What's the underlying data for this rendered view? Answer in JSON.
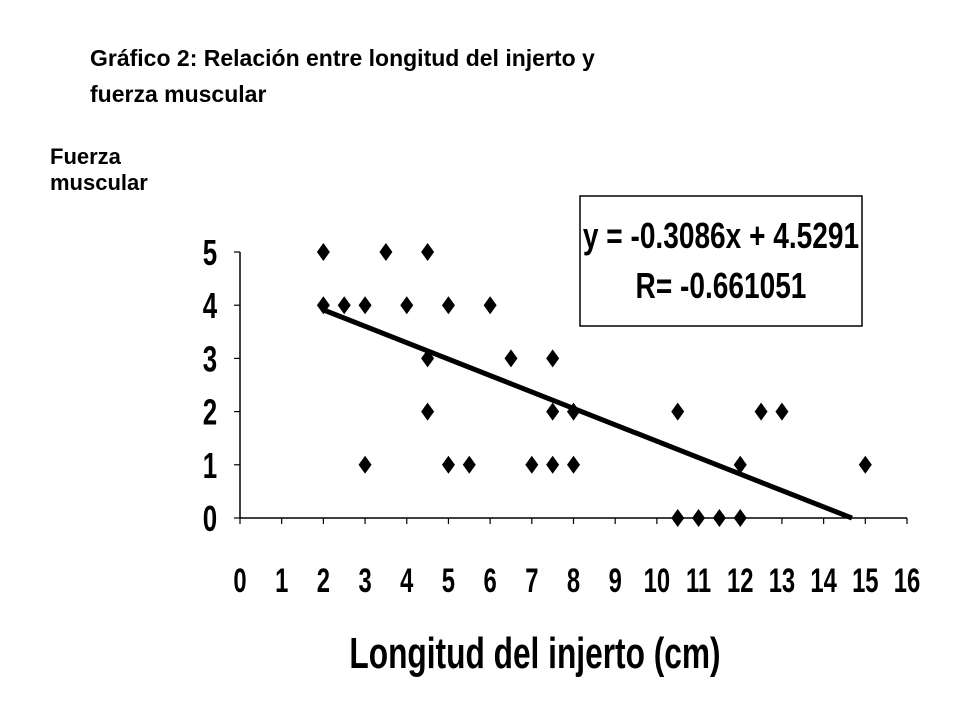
{
  "chart_data": {
    "type": "scatter",
    "title": "Gráfico 2: Relación entre longitud del injerto y fuerza muscular",
    "title_lines": [
      "Gráfico 2: Relación entre longitud del injerto y",
      "fuerza muscular"
    ],
    "xlabel": "Longitud del injerto (cm)",
    "ylabel": "Fuerza muscular",
    "ylabel_lines": [
      "Fuerza",
      "muscular"
    ],
    "xlim": [
      0,
      16
    ],
    "ylim": [
      0,
      5
    ],
    "x_ticks": [
      "0",
      "1",
      "2",
      "3",
      "4",
      "5",
      "6",
      "7",
      "8",
      "9",
      "10",
      "11",
      "12",
      "13",
      "14",
      "15",
      "16"
    ],
    "y_ticks": [
      "0",
      "1",
      "2",
      "3",
      "4",
      "5"
    ],
    "grid": false,
    "marker": "diamond",
    "points": [
      {
        "x": 2,
        "y": 5
      },
      {
        "x": 2,
        "y": 4
      },
      {
        "x": 2.5,
        "y": 4
      },
      {
        "x": 3,
        "y": 4
      },
      {
        "x": 3,
        "y": 1
      },
      {
        "x": 3.5,
        "y": 5
      },
      {
        "x": 4,
        "y": 4
      },
      {
        "x": 4.5,
        "y": 5
      },
      {
        "x": 4.5,
        "y": 3
      },
      {
        "x": 4.5,
        "y": 2
      },
      {
        "x": 5,
        "y": 4
      },
      {
        "x": 5,
        "y": 1
      },
      {
        "x": 5.5,
        "y": 1
      },
      {
        "x": 6,
        "y": 4
      },
      {
        "x": 6.5,
        "y": 3
      },
      {
        "x": 7,
        "y": 1
      },
      {
        "x": 7.5,
        "y": 3
      },
      {
        "x": 7.5,
        "y": 2
      },
      {
        "x": 7.5,
        "y": 1
      },
      {
        "x": 8,
        "y": 2
      },
      {
        "x": 8,
        "y": 1
      },
      {
        "x": 10.5,
        "y": 2
      },
      {
        "x": 10.5,
        "y": 0
      },
      {
        "x": 11,
        "y": 0
      },
      {
        "x": 11.5,
        "y": 0
      },
      {
        "x": 12,
        "y": 1
      },
      {
        "x": 12,
        "y": 0
      },
      {
        "x": 12.5,
        "y": 2
      },
      {
        "x": 13,
        "y": 2
      },
      {
        "x": 15,
        "y": 1
      }
    ],
    "trendline": {
      "slope": -0.3086,
      "intercept": 4.5291,
      "x_start": 2,
      "x_end": 14.68,
      "equation": "y = -0.3086x + 4.5291",
      "r_label": "R= -0.661051"
    },
    "annotation_box": "top-right"
  }
}
